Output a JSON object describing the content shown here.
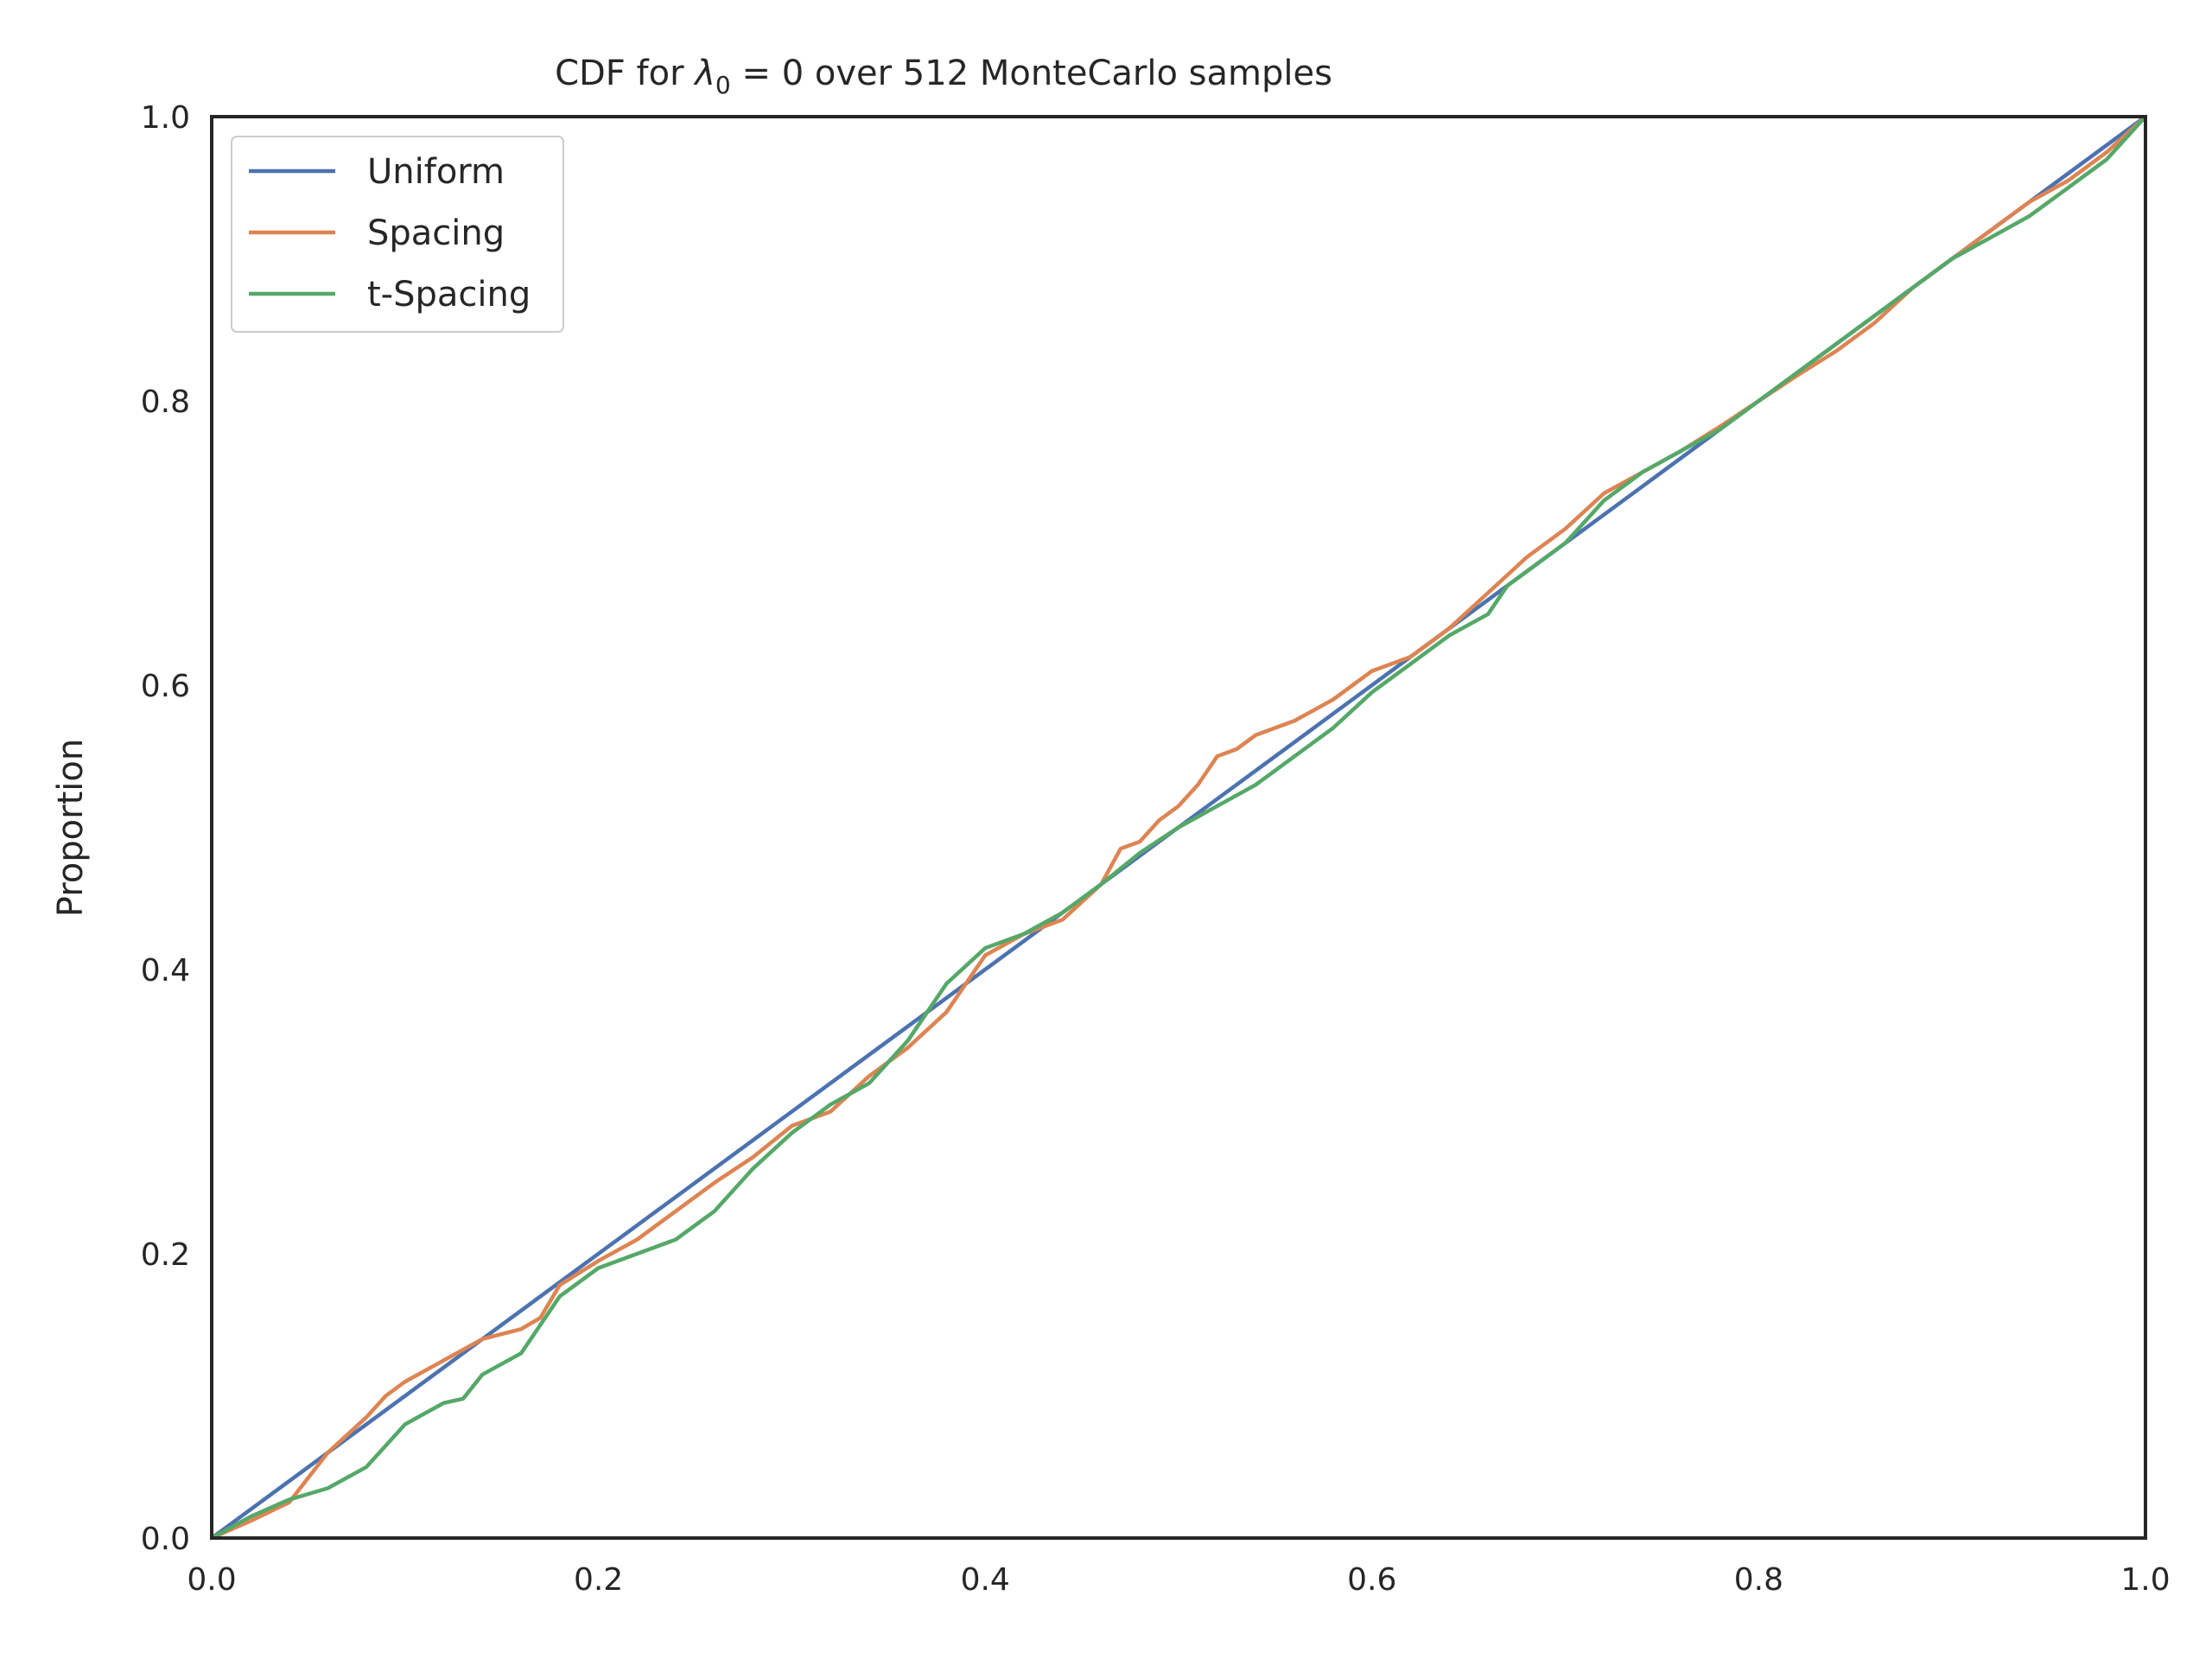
{
  "chart_data": {
    "type": "line",
    "title_prefix": "CDF for ",
    "title_symbol": "λ",
    "title_subscript": "0",
    "title_suffix": " = 0 over 512 MonteCarlo samples",
    "xlabel": "",
    "ylabel": "Proportion",
    "xlim": [
      0.0,
      1.0
    ],
    "ylim": [
      0.0,
      1.0
    ],
    "xticks": [
      "0.0",
      "0.2",
      "0.4",
      "0.6",
      "0.8",
      "1.0"
    ],
    "yticks": [
      "0.0",
      "0.2",
      "0.4",
      "0.6",
      "0.8",
      "1.0"
    ],
    "grid": false,
    "legend_position": "top-left",
    "series": [
      {
        "name": "Uniform",
        "color": "#4c72b0",
        "points": [
          [
            0.0,
            0.0
          ],
          [
            1.0,
            1.0
          ]
        ]
      },
      {
        "name": "Spacing",
        "color": "#dd8452",
        "points": [
          [
            0.0,
            0.0
          ],
          [
            0.02,
            0.012
          ],
          [
            0.04,
            0.025
          ],
          [
            0.06,
            0.06
          ],
          [
            0.08,
            0.085
          ],
          [
            0.09,
            0.1
          ],
          [
            0.1,
            0.11
          ],
          [
            0.12,
            0.125
          ],
          [
            0.14,
            0.14
          ],
          [
            0.16,
            0.147
          ],
          [
            0.17,
            0.155
          ],
          [
            0.18,
            0.178
          ],
          [
            0.2,
            0.195
          ],
          [
            0.22,
            0.21
          ],
          [
            0.24,
            0.23
          ],
          [
            0.26,
            0.25
          ],
          [
            0.28,
            0.268
          ],
          [
            0.3,
            0.29
          ],
          [
            0.32,
            0.3
          ],
          [
            0.34,
            0.325
          ],
          [
            0.36,
            0.345
          ],
          [
            0.38,
            0.37
          ],
          [
            0.4,
            0.41
          ],
          [
            0.42,
            0.425
          ],
          [
            0.44,
            0.435
          ],
          [
            0.46,
            0.46
          ],
          [
            0.47,
            0.485
          ],
          [
            0.48,
            0.49
          ],
          [
            0.49,
            0.505
          ],
          [
            0.5,
            0.515
          ],
          [
            0.51,
            0.53
          ],
          [
            0.52,
            0.55
          ],
          [
            0.53,
            0.555
          ],
          [
            0.54,
            0.565
          ],
          [
            0.56,
            0.575
          ],
          [
            0.58,
            0.59
          ],
          [
            0.6,
            0.61
          ],
          [
            0.62,
            0.62
          ],
          [
            0.64,
            0.64
          ],
          [
            0.66,
            0.665
          ],
          [
            0.68,
            0.69
          ],
          [
            0.7,
            0.71
          ],
          [
            0.72,
            0.735
          ],
          [
            0.74,
            0.75
          ],
          [
            0.76,
            0.765
          ],
          [
            0.78,
            0.782
          ],
          [
            0.8,
            0.8
          ],
          [
            0.82,
            0.818
          ],
          [
            0.84,
            0.835
          ],
          [
            0.86,
            0.855
          ],
          [
            0.88,
            0.88
          ],
          [
            0.9,
            0.9
          ],
          [
            0.92,
            0.92
          ],
          [
            0.94,
            0.94
          ],
          [
            0.96,
            0.955
          ],
          [
            0.98,
            0.975
          ],
          [
            1.0,
            1.0
          ]
        ]
      },
      {
        "name": "t-Spacing",
        "color": "#55a868",
        "points": [
          [
            0.0,
            0.0
          ],
          [
            0.02,
            0.015
          ],
          [
            0.04,
            0.027
          ],
          [
            0.06,
            0.035
          ],
          [
            0.08,
            0.05
          ],
          [
            0.1,
            0.08
          ],
          [
            0.12,
            0.095
          ],
          [
            0.13,
            0.098
          ],
          [
            0.14,
            0.115
          ],
          [
            0.16,
            0.13
          ],
          [
            0.18,
            0.17
          ],
          [
            0.2,
            0.19
          ],
          [
            0.22,
            0.2
          ],
          [
            0.24,
            0.21
          ],
          [
            0.26,
            0.23
          ],
          [
            0.28,
            0.26
          ],
          [
            0.3,
            0.285
          ],
          [
            0.32,
            0.305
          ],
          [
            0.34,
            0.32
          ],
          [
            0.36,
            0.35
          ],
          [
            0.37,
            0.37
          ],
          [
            0.38,
            0.39
          ],
          [
            0.4,
            0.415
          ],
          [
            0.42,
            0.425
          ],
          [
            0.44,
            0.44
          ],
          [
            0.46,
            0.46
          ],
          [
            0.48,
            0.482
          ],
          [
            0.5,
            0.5
          ],
          [
            0.52,
            0.515
          ],
          [
            0.54,
            0.53
          ],
          [
            0.56,
            0.55
          ],
          [
            0.58,
            0.57
          ],
          [
            0.6,
            0.595
          ],
          [
            0.62,
            0.615
          ],
          [
            0.64,
            0.635
          ],
          [
            0.66,
            0.65
          ],
          [
            0.67,
            0.67
          ],
          [
            0.68,
            0.68
          ],
          [
            0.7,
            0.7
          ],
          [
            0.72,
            0.73
          ],
          [
            0.74,
            0.75
          ],
          [
            0.76,
            0.765
          ],
          [
            0.78,
            0.78
          ],
          [
            0.8,
            0.8
          ],
          [
            0.82,
            0.82
          ],
          [
            0.84,
            0.84
          ],
          [
            0.86,
            0.86
          ],
          [
            0.88,
            0.88
          ],
          [
            0.9,
            0.9
          ],
          [
            0.92,
            0.915
          ],
          [
            0.94,
            0.93
          ],
          [
            0.96,
            0.95
          ],
          [
            0.98,
            0.97
          ],
          [
            1.0,
            1.0
          ]
        ]
      }
    ]
  }
}
